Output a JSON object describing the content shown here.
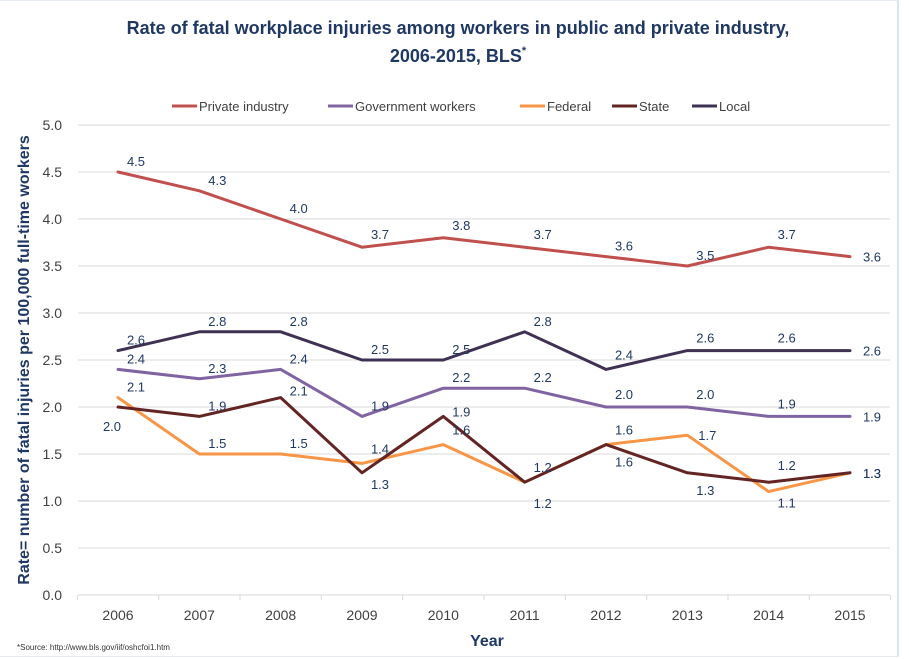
{
  "chart_data": {
    "type": "line",
    "title_line1": "Rate of fatal workplace injuries among workers in public and private industry,",
    "title_line2": "2006-2015, BLS",
    "title_superscript": "*",
    "xlabel": "Year",
    "ylabel": "Rate= number of fatal injuries per 100,000 full-time workers",
    "ylim": [
      0,
      5
    ],
    "yticks": [
      "0.0",
      "0.5",
      "1.0",
      "1.5",
      "2.0",
      "2.5",
      "3.0",
      "3.5",
      "4.0",
      "4.5",
      "5.0"
    ],
    "ytick_values": [
      0,
      0.5,
      1,
      1.5,
      2,
      2.5,
      3,
      3.5,
      4,
      4.5,
      5
    ],
    "grid": true,
    "legend_position": "top",
    "categories": [
      "2006",
      "2007",
      "2008",
      "2009",
      "2010",
      "2011",
      "2012",
      "2013",
      "2014",
      "2015"
    ],
    "series": [
      {
        "name": "Private industry",
        "color": "#c0504d",
        "values": [
          4.5,
          4.3,
          4.0,
          3.7,
          3.8,
          3.7,
          3.6,
          3.5,
          3.7,
          3.6
        ],
        "labels": [
          "4.5",
          "4.3",
          "4.0",
          "3.7",
          "3.8",
          "3.7",
          "3.6",
          "3.5",
          "3.7",
          "3.6"
        ]
      },
      {
        "name": "Government workers",
        "color": "#8064a2",
        "values": [
          2.4,
          2.3,
          2.4,
          1.9,
          2.2,
          2.2,
          2.0,
          2.0,
          1.9,
          1.9
        ],
        "labels": [
          "2.4",
          "2.3",
          "2.4",
          "1.9",
          "2.2",
          "2.2",
          "2.0",
          "2.0",
          "1.9",
          "1.9"
        ]
      },
      {
        "name": "Federal",
        "color": "#f79646",
        "values": [
          2.1,
          1.5,
          1.5,
          1.4,
          1.6,
          1.2,
          1.6,
          1.7,
          1.1,
          1.3
        ],
        "labels": [
          "2.1",
          "1.5",
          "1.5",
          "1.4",
          "1.6",
          "1.2",
          "1.6",
          "1.7",
          "1.1",
          "1.3"
        ]
      },
      {
        "name": "State",
        "color": "#632523",
        "values": [
          2.0,
          1.9,
          2.1,
          1.3,
          1.9,
          1.2,
          1.6,
          1.3,
          1.2,
          1.3
        ],
        "labels": [
          "2.0",
          "1.9",
          "2.1",
          "1.3",
          "1.9",
          "1.2",
          "1.6",
          "1.3",
          "1.2",
          "1.3"
        ]
      },
      {
        "name": "Local",
        "color": "#3f3151",
        "values": [
          2.6,
          2.8,
          2.8,
          2.5,
          2.5,
          2.8,
          2.4,
          2.6,
          2.6,
          2.6
        ],
        "labels": [
          "2.6",
          "2.8",
          "2.8",
          "2.5",
          "2.5",
          "2.8",
          "2.4",
          "2.6",
          "2.6",
          "2.6"
        ]
      }
    ],
    "source_note": "*Source: http://www.bls.gov/iif/oshcfoi1.htm"
  }
}
